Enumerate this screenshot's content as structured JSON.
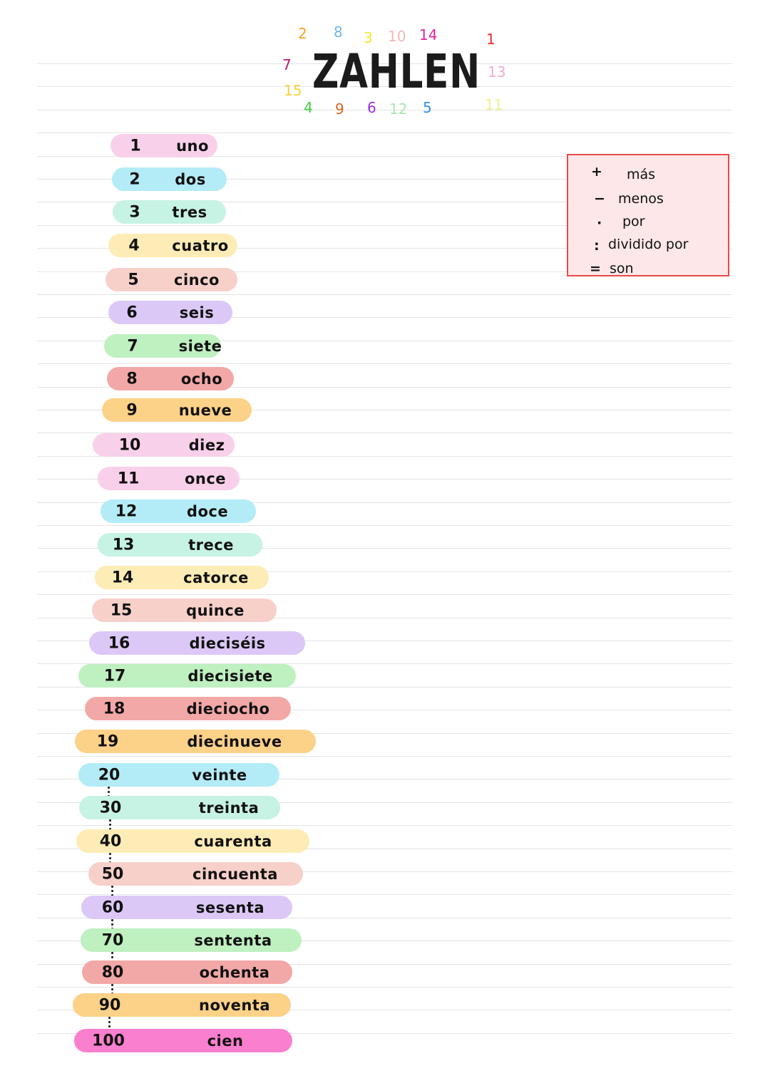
{
  "title": "ZAHLEN",
  "title_decorations": [
    {
      "text": "2",
      "color": "#f5a623"
    },
    {
      "text": "8",
      "color": "#6fb6f0"
    },
    {
      "text": "3",
      "color": "#f7e52a"
    },
    {
      "text": "10",
      "color": "#f2b7b7"
    },
    {
      "text": "14",
      "color": "#e0249b"
    },
    {
      "text": "1",
      "color": "#e8322e"
    },
    {
      "text": "7",
      "color": "#c0167a"
    },
    {
      "text": "13",
      "color": "#f4a9d6"
    },
    {
      "text": "15",
      "color": "#f5d33a"
    },
    {
      "text": "4",
      "color": "#3ccf3c"
    },
    {
      "text": "9",
      "color": "#d9641e"
    },
    {
      "text": "6",
      "color": "#9b2ee0"
    },
    {
      "text": "12",
      "color": "#a8e6b0"
    },
    {
      "text": "5",
      "color": "#2f8fe8"
    },
    {
      "text": "11",
      "color": "#f3ef8a"
    }
  ],
  "numbers": [
    {
      "num": "1",
      "word": "uno",
      "color": "#f9d0ea"
    },
    {
      "num": "2",
      "word": "dos",
      "color": "#b3ecf7"
    },
    {
      "num": "3",
      "word": "tres",
      "color": "#c6f3e3"
    },
    {
      "num": "4",
      "word": "cuatro",
      "color": "#fdecb5"
    },
    {
      "num": "5",
      "word": "cinco",
      "color": "#f7d0c9"
    },
    {
      "num": "6",
      "word": "seis",
      "color": "#dcc8f7"
    },
    {
      "num": "7",
      "word": "siete",
      "color": "#bff0c0"
    },
    {
      "num": "8",
      "word": "ocho",
      "color": "#f2a8a6"
    },
    {
      "num": "9",
      "word": "nueve",
      "color": "#fcd188"
    },
    {
      "num": "10",
      "word": "diez",
      "color": "#f9d0ea"
    },
    {
      "num": "11",
      "word": "once",
      "color": "#f9d0ea"
    },
    {
      "num": "12",
      "word": "doce",
      "color": "#b3ecf7"
    },
    {
      "num": "13",
      "word": "trece",
      "color": "#c6f3e3"
    },
    {
      "num": "14",
      "word": "catorce",
      "color": "#fdecb5"
    },
    {
      "num": "15",
      "word": "quince",
      "color": "#f7d0c9"
    },
    {
      "num": "16",
      "word": "dieciséis",
      "color": "#dcc8f7"
    },
    {
      "num": "17",
      "word": "diecisiete",
      "color": "#bff0c0"
    },
    {
      "num": "18",
      "word": "dieciocho",
      "color": "#f2a8a6"
    },
    {
      "num": "19",
      "word": "diecinueve",
      "color": "#fcd188"
    },
    {
      "num": "20",
      "word": "veinte",
      "color": "#b3ecf7"
    },
    {
      "num": "30",
      "word": "treinta",
      "color": "#c6f3e3"
    },
    {
      "num": "40",
      "word": "cuarenta",
      "color": "#fdecb5"
    },
    {
      "num": "50",
      "word": "cincuenta",
      "color": "#f7d0c9"
    },
    {
      "num": "60",
      "word": "sesenta",
      "color": "#dcc8f7"
    },
    {
      "num": "70",
      "word": "sententa",
      "color": "#bff0c0"
    },
    {
      "num": "80",
      "word": "ochenta",
      "color": "#f2a8a6"
    },
    {
      "num": "90",
      "word": "noventa",
      "color": "#fcd188"
    },
    {
      "num": "100",
      "word": "cien",
      "color": "#fb7fcf"
    }
  ],
  "operations": [
    {
      "symbol": "+",
      "word": "más"
    },
    {
      "symbol": "−",
      "word": "menos"
    },
    {
      "symbol": "·",
      "word": "por"
    },
    {
      "symbol": ":",
      "word": "dividido por"
    },
    {
      "symbol": "=",
      "word": "son"
    }
  ],
  "box_border_color": "#e74a4a"
}
